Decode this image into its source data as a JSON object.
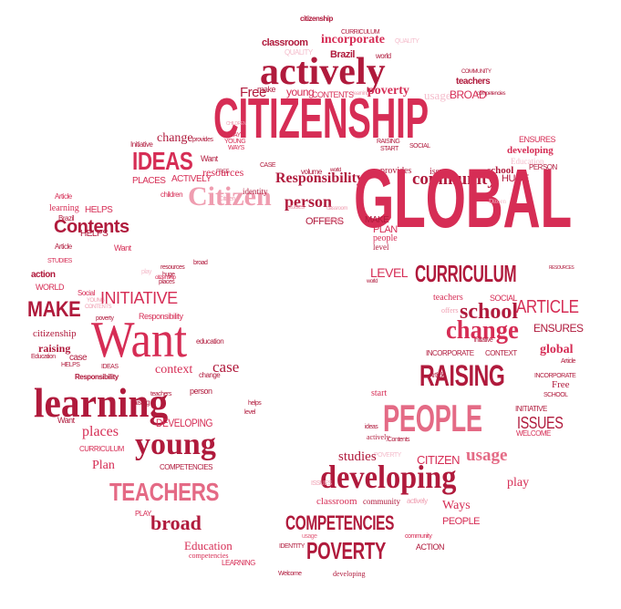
{
  "colors": {
    "deep": "#b01a3c",
    "main": "#d62d55",
    "pink": "#e46a85",
    "light": "#ef9db0",
    "pale": "#f4bccb"
  },
  "words": [
    "citizenship",
    "CURRICULUM",
    "classroom",
    "incorporate",
    "QUALITY",
    "QUALITY",
    "Brazil",
    "world",
    "actively",
    "make",
    "COMMUNITY",
    "teachers",
    "BROAD",
    "competencies",
    "Free",
    "young",
    "CONTENTS",
    "learning",
    "poverty",
    "usage",
    "CITIZENSHIP",
    "CHILDREN",
    "WAYS",
    "RAISING",
    "START",
    "SOCIAL",
    "change",
    "provides",
    "YOUNG",
    "WAYS",
    "Initiative",
    "ENSURES",
    "developing",
    "Education",
    "IDEAS",
    "Want",
    "CASE",
    "FREE",
    "volume",
    "world",
    "provides",
    "issues",
    "HUGE",
    "school",
    "PERSON",
    "ACTIVELY",
    "resources",
    "Responsibility",
    "community",
    "PLACES",
    "Citizen",
    "identity",
    "Article",
    "learning",
    "HELPS",
    "Brazil",
    "children",
    "Citizen",
    "person",
    "GLOBAL",
    "Contents",
    "OFFERS",
    "MAKE",
    "PLAN",
    "people",
    "level",
    "Ditoen",
    "studies",
    "classroom",
    "identity",
    "Article",
    "STUDIES",
    "HELPS",
    "Want",
    "play",
    "resources",
    "huge",
    "places",
    "broad",
    "action",
    "WORLD",
    "LEVEL",
    "CURRICULUM",
    "Social",
    "YOUNG",
    "CONTENTS",
    "INITIATIVE",
    "MAKE",
    "teachers",
    "SOCIAL",
    "ARTICLE",
    "offers",
    "school",
    "poverty",
    "citizenship",
    "Responsibility",
    "ENSURES",
    "change",
    "Want",
    "raising",
    "Education",
    "INCORPORATE",
    "CONTEXT",
    "global",
    "case",
    "HELPS",
    "IDEAS",
    "Responsibility",
    "case",
    "change",
    "Article",
    "INCORPORATE",
    "Free",
    "SCHOOL",
    "RAISING",
    "learning",
    "context",
    "start",
    "INITIATIVE",
    "teachers",
    "person",
    "helps",
    "level",
    "Want",
    "raising",
    "places",
    "DEVELOPING",
    "PEOPLE",
    "ISSUES",
    "WELCOME",
    "ideas",
    "actively",
    "Contents",
    "CURRICULUM",
    "young",
    "COMPETENCIES",
    "POVERTY",
    "studies",
    "CITIZEN",
    "usage",
    "Plan",
    "developing",
    "play",
    "TEACHERS",
    "ISSUES",
    "classroom",
    "community",
    "actively",
    "Ways",
    "PLAY",
    "broad",
    "COMPETENCIES",
    "PEOPLE",
    "usage",
    "community",
    "ACTION",
    "Education",
    "IDENTITY",
    "POVERTY",
    "competencies",
    "LEARNING",
    "Welcome",
    "developing",
    "RESOURCES",
    "world",
    "Article",
    "citizenship",
    "education",
    "initiative"
  ]
}
